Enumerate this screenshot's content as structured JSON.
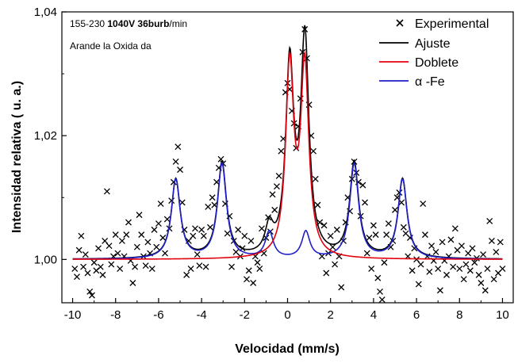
{
  "chart_data": {
    "type": "scatter",
    "xlabel": "Velocidad (mm/s)",
    "ylabel": "Intensidad relativa ( u. a.)",
    "xlim": [
      -10.5,
      10.5
    ],
    "ylim": [
      0.993,
      1.04
    ],
    "xticks": [
      -10,
      -8,
      -6,
      -4,
      -2,
      0,
      2,
      4,
      6,
      8,
      10
    ],
    "xtick_labels": [
      "-10",
      "-8",
      "-6",
      "-4",
      "-2",
      "0",
      "2",
      "4",
      "6",
      "8",
      "10"
    ],
    "yticks": [
      1.0,
      1.02,
      1.04
    ],
    "ytick_labels": [
      "1,00",
      "1,02",
      "1,04"
    ],
    "grid": false,
    "legend_position": "top-right",
    "annotations": {
      "line1_plain": "155-230 ",
      "line1_bold": "1040V 36burb",
      "line1_tail": "/min",
      "line2": "Arande la Oxida da"
    },
    "legend": {
      "experimental": "Experimental",
      "ajuste": "Ajuste",
      "doblete": "Doblete",
      "alpha_fe": "α -Fe"
    },
    "colors": {
      "experimental": "#000000",
      "ajuste": "#000000",
      "doblete": "#e3000f",
      "alpha_fe": "#1f1fc8"
    },
    "model": {
      "baseline": 1.0,
      "doublet": {
        "peaks": [
          {
            "position": 0.1,
            "amplitude": 0.0305,
            "fwhm": 0.45
          },
          {
            "position": 0.8,
            "amplitude": 0.0305,
            "fwhm": 0.45
          }
        ]
      },
      "alpha_fe": {
        "peaks": [
          {
            "position": -5.2,
            "amplitude": 0.0128,
            "fwhm": 0.5
          },
          {
            "position": -3.05,
            "amplitude": 0.0153,
            "fwhm": 0.5
          },
          {
            "position": -0.85,
            "amplitude": 0.0043,
            "fwhm": 0.45
          },
          {
            "position": 0.85,
            "amplitude": 0.0043,
            "fwhm": 0.45
          },
          {
            "position": 3.1,
            "amplitude": 0.0153,
            "fwhm": 0.5
          },
          {
            "position": 5.35,
            "amplitude": 0.0128,
            "fwhm": 0.5
          }
        ]
      }
    },
    "experimental_points": [
      [
        -9.9,
        0.9985
      ],
      [
        -9.8,
        0.9972
      ],
      [
        -9.7,
        1.0015
      ],
      [
        -9.6,
        1.0038
      ],
      [
        -9.5,
        0.9988
      ],
      [
        -9.4,
        1.0008
      ],
      [
        -9.3,
        0.9978
      ],
      [
        -9.2,
        0.9948
      ],
      [
        -9.1,
        0.9942
      ],
      [
        -9.0,
        0.9995
      ],
      [
        -8.9,
        0.9982
      ],
      [
        -8.8,
        1.0018
      ],
      [
        -8.7,
        0.9988
      ],
      [
        -8.6,
        0.9975
      ],
      [
        -8.5,
        1.003
      ],
      [
        -8.4,
        1.011
      ],
      [
        -8.3,
        1.0022
      ],
      [
        -8.2,
        0.9992
      ],
      [
        -8.1,
        1.0005
      ],
      [
        -8.0,
        1.004
      ],
      [
        -7.9,
        1.001
      ],
      [
        -7.8,
        0.9985
      ],
      [
        -7.7,
        1.003
      ],
      [
        -7.6,
        1.0005
      ],
      [
        -7.5,
        1.004
      ],
      [
        -7.4,
        1.006
      ],
      [
        -7.3,
        0.9998
      ],
      [
        -7.2,
        0.9962
      ],
      [
        -7.1,
        0.9988
      ],
      [
        -7.0,
        1.002
      ],
      [
        -6.9,
        1.0072
      ],
      [
        -6.8,
        1.004
      ],
      [
        -6.7,
        1.0005
      ],
      [
        -6.6,
        0.999
      ],
      [
        -6.5,
        1.0028
      ],
      [
        -6.4,
        1.001
      ],
      [
        -6.3,
        0.9985
      ],
      [
        -6.2,
        1.0048
      ],
      [
        -6.1,
        1.002
      ],
      [
        -6.0,
        1.0058
      ],
      [
        -5.9,
        1.009
      ],
      [
        -5.8,
        1.0035
      ],
      [
        -5.7,
        1.001
      ],
      [
        -5.6,
        1.0065
      ],
      [
        -5.5,
        1.005
      ],
      [
        -5.4,
        1.0095
      ],
      [
        -5.3,
        1.0125
      ],
      [
        -5.2,
        1.0158
      ],
      [
        -5.1,
        1.0182
      ],
      [
        -5.0,
        1.0145
      ],
      [
        -4.9,
        1.0092
      ],
      [
        -4.8,
        1.0048
      ],
      [
        -4.7,
        0.9975
      ],
      [
        -4.6,
        1.003
      ],
      [
        -4.5,
        0.9985
      ],
      [
        -4.4,
        1.0038
      ],
      [
        -4.3,
        1.005
      ],
      [
        -4.2,
        1.0008
      ],
      [
        -4.1,
        0.999
      ],
      [
        -4.0,
        1.0048
      ],
      [
        -3.9,
        1.0038
      ],
      [
        -3.8,
        0.9988
      ],
      [
        -3.7,
        1.0085
      ],
      [
        -3.6,
        1.0052
      ],
      [
        -3.5,
        1.01
      ],
      [
        -3.4,
        1.0088
      ],
      [
        -3.3,
        1.0125
      ],
      [
        -3.2,
        1.0148
      ],
      [
        -3.1,
        1.0162
      ],
      [
        -3.0,
        1.0155
      ],
      [
        -2.9,
        1.009
      ],
      [
        -2.8,
        1.0042
      ],
      [
        -2.7,
        1.007
      ],
      [
        -2.6,
        0.9988
      ],
      [
        -2.5,
        1.003
      ],
      [
        -2.4,
        1.0012
      ],
      [
        -2.3,
        1.0048
      ],
      [
        -2.2,
        1.0005
      ],
      [
        -2.1,
        1.0018
      ],
      [
        -2.0,
        1.0038
      ],
      [
        -1.9,
        0.9968
      ],
      [
        -1.8,
        0.9982
      ],
      [
        -1.7,
        1.003
      ],
      [
        -1.6,
        0.9962
      ],
      [
        -1.5,
        1.0005
      ],
      [
        -1.4,
        0.9995
      ],
      [
        -1.3,
        0.9985
      ],
      [
        -1.2,
        1.005
      ],
      [
        -1.1,
        1.001
      ],
      [
        -1.0,
        1.0035
      ],
      [
        -0.9,
        1.0068
      ],
      [
        -0.8,
        1.0045
      ],
      [
        -0.7,
        1.0105
      ],
      [
        -0.6,
        1.008
      ],
      [
        -0.5,
        1.0118
      ],
      [
        -0.4,
        1.0135
      ],
      [
        -0.3,
        1.0175
      ],
      [
        -0.2,
        1.0195
      ],
      [
        -0.1,
        1.027
      ],
      [
        0.0,
        1.0285
      ],
      [
        0.1,
        1.0275
      ],
      [
        0.2,
        1.024
      ],
      [
        0.3,
        1.022
      ],
      [
        0.4,
        1.018
      ],
      [
        0.5,
        1.0215
      ],
      [
        0.6,
        1.026
      ],
      [
        0.7,
        1.0335
      ],
      [
        0.8,
        1.0372
      ],
      [
        0.9,
        1.0325
      ],
      [
        1.0,
        1.025
      ],
      [
        1.1,
        1.02
      ],
      [
        1.2,
        1.0175
      ],
      [
        1.3,
        1.013
      ],
      [
        1.4,
        1.0088
      ],
      [
        1.5,
        1.006
      ],
      [
        1.6,
        1.0005
      ],
      [
        1.7,
        1.0055
      ],
      [
        1.8,
        0.9978
      ],
      [
        1.9,
        1.001
      ],
      [
        2.0,
        1.0038
      ],
      [
        2.1,
        1.002
      ],
      [
        2.2,
        0.9992
      ],
      [
        2.3,
        1.0048
      ],
      [
        2.4,
        1.0005
      ],
      [
        2.5,
        0.9955
      ],
      [
        2.6,
        1.003
      ],
      [
        2.7,
        1.006
      ],
      [
        2.8,
        1.01
      ],
      [
        2.9,
        1.0078
      ],
      [
        3.0,
        1.013
      ],
      [
        3.1,
        1.0158
      ],
      [
        3.2,
        1.014
      ],
      [
        3.3,
        1.0125
      ],
      [
        3.4,
        1.007
      ],
      [
        3.5,
        1.012
      ],
      [
        3.6,
        1.0092
      ],
      [
        3.7,
        1.001
      ],
      [
        3.8,
        1.0035
      ],
      [
        3.9,
        0.9985
      ],
      [
        4.0,
        1.0055
      ],
      [
        4.1,
        1.004
      ],
      [
        4.2,
        0.997
      ],
      [
        4.3,
        0.9948
      ],
      [
        4.4,
        0.9935
      ],
      [
        4.5,
        0.9995
      ],
      [
        4.6,
        1.004
      ],
      [
        4.7,
        1.0058
      ],
      [
        4.8,
        1.002
      ],
      [
        4.9,
        1.003
      ],
      [
        5.0,
        1.008
      ],
      [
        5.1,
        1.01
      ],
      [
        5.2,
        1.0108
      ],
      [
        5.3,
        1.0092
      ],
      [
        5.4,
        1.0052
      ],
      [
        5.5,
        1.0042
      ],
      [
        5.6,
        1.0005
      ],
      [
        5.7,
        1.0035
      ],
      [
        5.8,
        0.9982
      ],
      [
        5.9,
        1.0018
      ],
      [
        6.0,
        1.0
      ],
      [
        6.1,
        0.996
      ],
      [
        6.2,
        0.9992
      ],
      [
        6.3,
        1.009
      ],
      [
        6.4,
        1.004
      ],
      [
        6.5,
        1.0005
      ],
      [
        6.6,
        0.998
      ],
      [
        6.7,
        1.0022
      ],
      [
        6.8,
        0.9998
      ],
      [
        6.9,
        1.0012
      ],
      [
        7.0,
        0.9985
      ],
      [
        7.1,
        0.995
      ],
      [
        7.2,
        1.0028
      ],
      [
        7.3,
        0.9998
      ],
      [
        7.4,
        0.9975
      ],
      [
        7.5,
        1.0005
      ],
      [
        7.6,
        1.0032
      ],
      [
        7.7,
        0.9988
      ],
      [
        7.8,
        1.005
      ],
      [
        7.9,
        1.0015
      ],
      [
        8.0,
        0.9985
      ],
      [
        8.1,
        1.0022
      ],
      [
        8.2,
        0.9968
      ],
      [
        8.3,
        0.9992
      ],
      [
        8.4,
        1.001
      ],
      [
        8.5,
        0.9982
      ],
      [
        8.6,
        1.0018
      ],
      [
        8.7,
        0.9995
      ],
      [
        8.8,
        1.0002
      ],
      [
        8.9,
        0.9975
      ],
      [
        9.0,
        0.9962
      ],
      [
        9.1,
        1.0008
      ],
      [
        9.2,
        0.995
      ],
      [
        9.3,
        0.9985
      ],
      [
        9.4,
        1.0062
      ],
      [
        9.5,
        1.003
      ],
      [
        9.6,
        0.9968
      ],
      [
        9.7,
        1.0012
      ],
      [
        9.8,
        0.9978
      ],
      [
        9.9,
        1.0028
      ],
      [
        10.0,
        0.9985
      ]
    ]
  }
}
